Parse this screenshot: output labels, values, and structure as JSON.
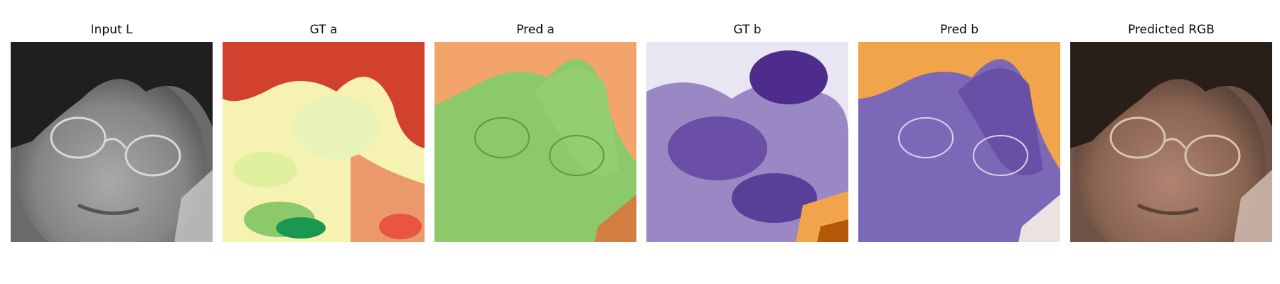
{
  "figure": {
    "panels": [
      {
        "title": "Input L",
        "image": "grayscale-face-with-glasses"
      },
      {
        "title": "GT a",
        "image": "a-channel-heatmap-red-yellow-green"
      },
      {
        "title": "Pred a",
        "image": "a-channel-heatmap-green-orange-edges"
      },
      {
        "title": "GT b",
        "image": "b-channel-heatmap-purple-orange"
      },
      {
        "title": "Pred b",
        "image": "b-channel-heatmap-purple-orange-edges"
      },
      {
        "title": "Predicted RGB",
        "image": "colorized-face-brown-tones"
      }
    ]
  },
  "colors": {
    "face_gray": "#8c8c8c",
    "a_red": "#c6302a",
    "a_yellow": "#f5f2b2",
    "a_green": "#8cc96a",
    "b_purple": "#5a3f98",
    "b_orange": "#f1a44a",
    "rgb_brown": "#8b6452"
  }
}
